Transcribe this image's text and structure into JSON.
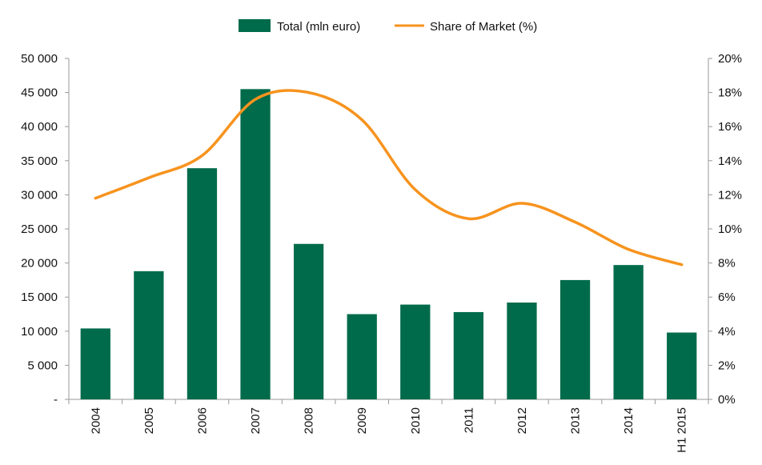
{
  "chart_data": {
    "type": "bar",
    "categories": [
      "2004",
      "2005",
      "2006",
      "2007",
      "2008",
      "2009",
      "2010",
      "2011",
      "2012",
      "2013",
      "2014",
      "H1 2015"
    ],
    "series": [
      {
        "name": "Total (mln euro)",
        "type": "bar",
        "axis": "left",
        "color": "#006b4a",
        "values": [
          10400,
          18800,
          33900,
          45500,
          22800,
          12500,
          13900,
          12800,
          14200,
          17500,
          19700,
          9800
        ]
      },
      {
        "name": "Share of Market (%)",
        "type": "line",
        "axis": "right",
        "color": "#f7931e",
        "values": [
          11.8,
          13.0,
          14.3,
          17.6,
          18.0,
          16.4,
          12.3,
          10.6,
          11.5,
          10.4,
          8.8,
          7.9
        ]
      }
    ],
    "y_left": {
      "lim": [
        0,
        50000
      ],
      "ticks": [
        0,
        5000,
        10000,
        15000,
        20000,
        25000,
        30000,
        35000,
        40000,
        45000,
        50000
      ],
      "tick_labels": [
        "-",
        "5 000",
        "10 000",
        "15 000",
        "20 000",
        "25 000",
        "30 000",
        "35 000",
        "40 000",
        "45 000",
        "50 000"
      ]
    },
    "y_right": {
      "lim": [
        0,
        20
      ],
      "ticks": [
        0,
        2,
        4,
        6,
        8,
        10,
        12,
        14,
        16,
        18,
        20
      ],
      "tick_labels": [
        "0%",
        "2%",
        "4%",
        "6%",
        "8%",
        "10%",
        "12%",
        "14%",
        "16%",
        "18%",
        "20%"
      ]
    },
    "title": "",
    "xlabel": "",
    "ylabel": "",
    "grid": false,
    "legend_position": "top-center"
  }
}
